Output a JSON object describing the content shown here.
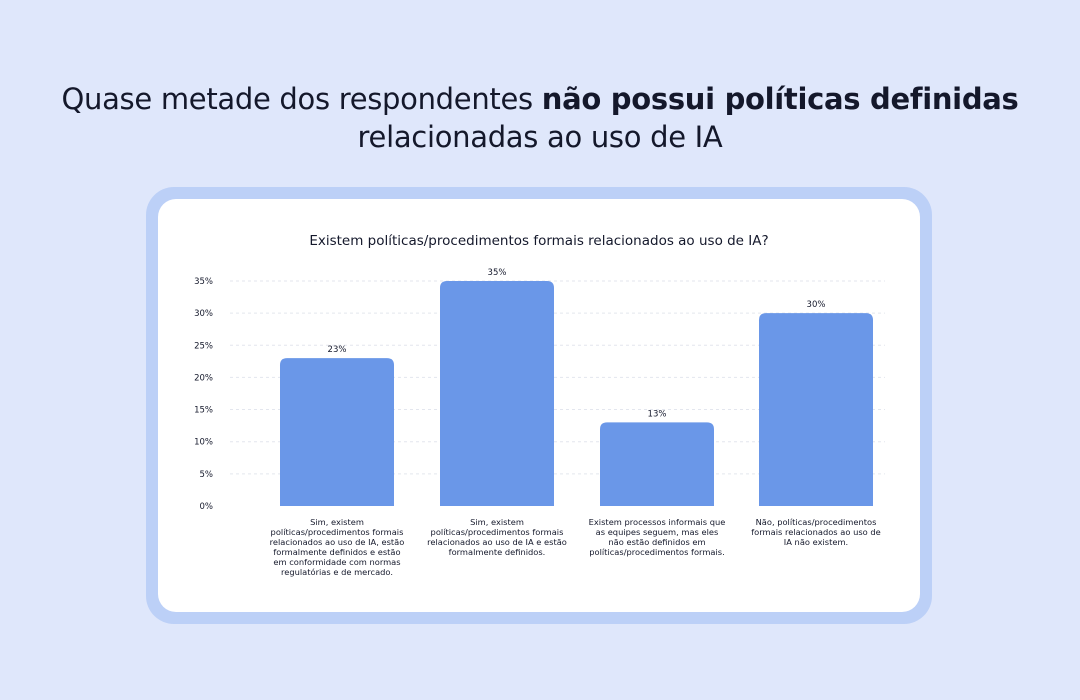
{
  "headline": {
    "part1": "Quase metade dos respondentes ",
    "bold": "não possui políticas definidas",
    "part2": " relacionadas ao uso de IA"
  },
  "colors": {
    "bar": "#6a97e8",
    "background": "#dfe7fb",
    "card_border": "#bcd0f7"
  },
  "chart_data": {
    "type": "bar",
    "title": "Existem políticas/procedimentos formais relacionados ao uso de IA?",
    "categories": [
      "Sim, existem políticas/procedimentos formais relacionados ao uso de IA, estão formalmente definidos e estão em conformidade com normas regulatórias e de mercado.",
      "Sim, existem políticas/procedimentos formais relacionados ao uso de IA e estão formalmente definidos.",
      "Existem processos informais que as equipes seguem, mas eles não estão definidos em políticas/procedimentos formais.",
      "Não, políticas/procedimentos formais relacionados ao uso de IA não existem."
    ],
    "values": [
      23,
      35,
      13,
      30
    ],
    "data_labels": [
      "23%",
      "35%",
      "13%",
      "30%"
    ],
    "yticks": [
      "0%",
      "5%",
      "10%",
      "15%",
      "20%",
      "25%",
      "30%",
      "35%"
    ],
    "ylim": [
      0,
      35
    ],
    "grid": true,
    "xlabel": "",
    "ylabel": ""
  }
}
